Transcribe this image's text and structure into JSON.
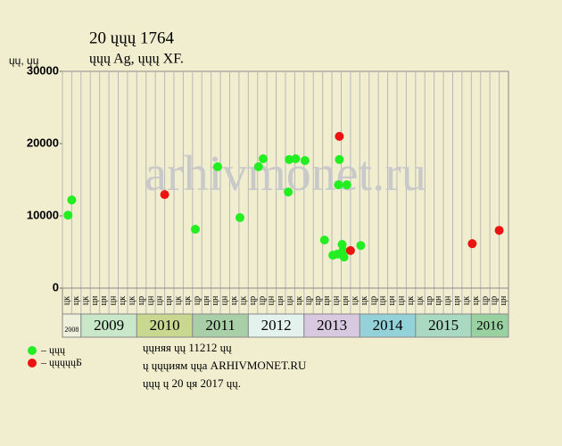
{
  "chart_data": {
    "type": "scatter",
    "title": "20 ųųų 1764",
    "subtitle": "ųųų Ag, ųųų XF.",
    "y_label": "ųų, ųų",
    "watermark": "arhivmonet.ru",
    "xlim": [
      0,
      48
    ],
    "ylim": [
      0,
      30000
    ],
    "yticks": [
      0,
      10000,
      20000,
      30000
    ],
    "years": [
      {
        "label": "2008",
        "color": "#eef0dc",
        "columns": [
          "цк",
          "цк"
        ]
      },
      {
        "label": "2009",
        "color": "#c9e8c9",
        "columns": [
          "цк",
          "цн",
          "цн",
          "цн",
          "цк",
          "цк"
        ]
      },
      {
        "label": "2010",
        "color": "#c9d890",
        "columns": [
          "цр",
          "цн",
          "цн",
          "цн",
          "цк",
          "цк"
        ]
      },
      {
        "label": "2011",
        "color": "#a9cfa9",
        "columns": [
          "цр",
          "цн",
          "цн",
          "цн",
          "цк",
          "цк"
        ]
      },
      {
        "label": "2012",
        "color": "#e4f2ee",
        "columns": [
          "цр",
          "цр",
          "цн",
          "цн",
          "цн",
          "цк"
        ]
      },
      {
        "label": "2013",
        "color": "#d9c9e0",
        "columns": [
          "цр",
          "цр",
          "цн",
          "цн",
          "цн",
          "цк"
        ]
      },
      {
        "label": "2014",
        "color": "#93d2d8",
        "columns": [
          "цк",
          "цр",
          "цн",
          "цн",
          "цн",
          "цк"
        ]
      },
      {
        "label": "2015",
        "color": "#a9d9c1",
        "columns": [
          "цк",
          "цр",
          "цн",
          "цн",
          "цн",
          "цк"
        ]
      },
      {
        "label": "2016",
        "color": "#99d1a1",
        "columns": [
          "цк",
          "цр",
          "цр",
          "цн"
        ]
      }
    ],
    "series": [
      {
        "name": "– ųųų",
        "color": "#22ee22",
        "x": [
          0.6,
          1.0,
          14.3,
          16.7,
          19.1,
          21.1,
          21.6,
          24.3,
          24.4,
          25.1,
          26.1,
          28.2,
          29.1,
          29.6,
          29.7,
          29.8,
          30.1,
          30.2,
          30.3,
          30.6,
          32.1
        ],
        "values": [
          10100,
          12200,
          8150,
          16800,
          9750,
          16800,
          17900,
          13300,
          17800,
          17900,
          17650,
          6650,
          4550,
          4700,
          14300,
          17800,
          6050,
          5200,
          4300,
          14300,
          5900
        ]
      },
      {
        "name": "– ųųųųųБ",
        "color": "#ee1111",
        "x": [
          11.0,
          29.8,
          31.0,
          44.1,
          47.0
        ],
        "values": [
          12950,
          21000,
          5200,
          6150,
          8000
        ]
      }
    ],
    "notes": [
      "ųųняя ųų 11212 ųų",
      "ų ųųųиям ųųа ARHIVMONET.RU",
      "ųųų ų 20 ųя 2017 ųų."
    ]
  }
}
